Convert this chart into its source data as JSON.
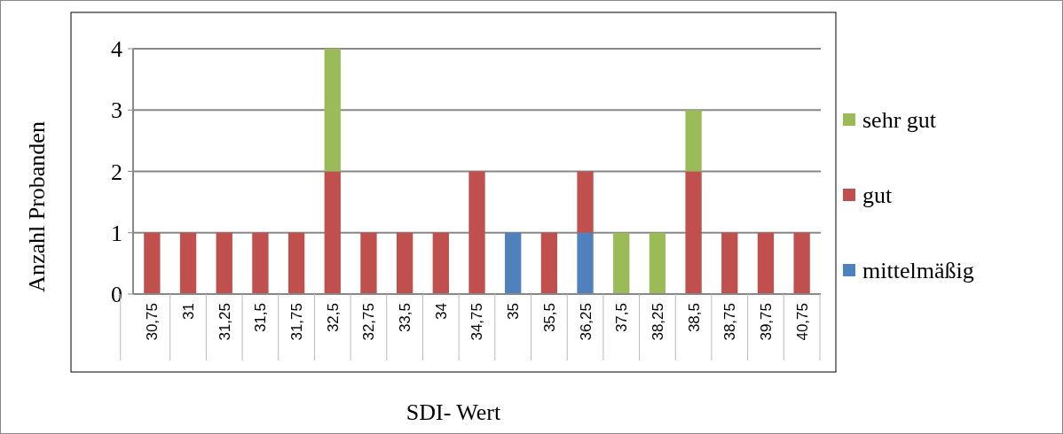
{
  "chart_data": {
    "type": "bar",
    "stacked": true,
    "xlabel": "SDI- Wert",
    "ylabel": "Anzahl Probanden",
    "categories": [
      "30,75",
      "31",
      "31,25",
      "31,5",
      "31,75",
      "32,5",
      "32,75",
      "33,5",
      "34",
      "34,75",
      "35",
      "35,5",
      "36,25",
      "37,5",
      "38,25",
      "38,5",
      "38,75",
      "39,75",
      "40,75"
    ],
    "series": [
      {
        "name": "mittelmäßig",
        "color": "#4f81bd",
        "values": [
          0,
          0,
          0,
          0,
          0,
          0,
          0,
          0,
          0,
          0,
          1,
          0,
          1,
          0,
          0,
          0,
          0,
          0,
          0
        ]
      },
      {
        "name": "gut",
        "color": "#c0504d",
        "values": [
          1,
          1,
          1,
          1,
          1,
          2,
          1,
          1,
          1,
          2,
          0,
          1,
          1,
          0,
          0,
          2,
          1,
          1,
          1
        ]
      },
      {
        "name": "sehr gut",
        "color": "#9bbb59",
        "values": [
          0,
          0,
          0,
          0,
          0,
          2,
          0,
          0,
          0,
          0,
          0,
          0,
          0,
          1,
          1,
          1,
          0,
          0,
          0
        ]
      }
    ],
    "ylim": [
      0,
      4
    ],
    "yticks": [
      0,
      1,
      2,
      3,
      4
    ],
    "grid": "y",
    "legend": "right"
  }
}
